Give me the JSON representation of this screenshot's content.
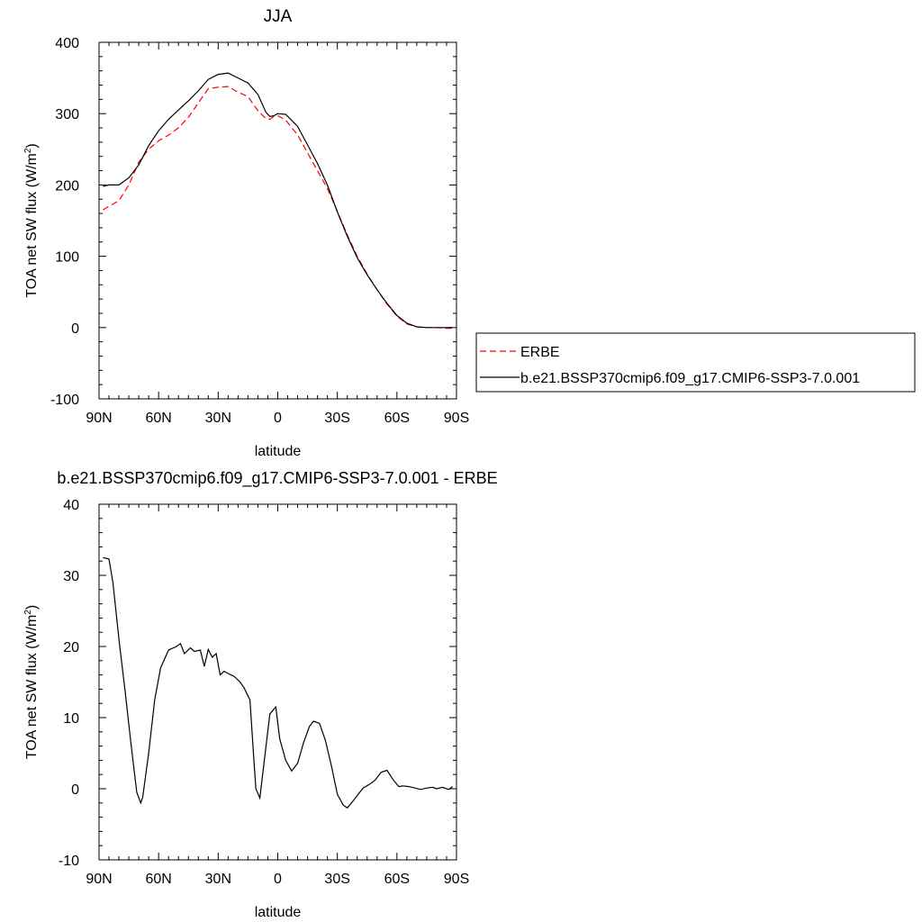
{
  "chart_data": [
    {
      "type": "line",
      "title": "JJA",
      "xlabel": "latitude",
      "ylabel_main": "TOA net SW flux (W/m",
      "ylabel_sup": "2",
      "ylabel_close": ")",
      "xlim": [
        90,
        -90
      ],
      "ylim": [
        -100,
        400
      ],
      "x_ticks": [
        {
          "value": 90,
          "label": "90N"
        },
        {
          "value": 60,
          "label": "60N"
        },
        {
          "value": 30,
          "label": "30N"
        },
        {
          "value": 0,
          "label": "0"
        },
        {
          "value": -30,
          "label": "30S"
        },
        {
          "value": -60,
          "label": "60S"
        },
        {
          "value": -90,
          "label": "90S"
        }
      ],
      "y_ticks": [
        -100,
        0,
        100,
        200,
        300,
        400
      ],
      "legend": {
        "placement": "right"
      },
      "series": [
        {
          "name": "ERBE",
          "color": "#ff0000",
          "style": "dashed",
          "x": [
            88,
            85,
            80,
            75,
            70,
            65,
            60,
            55,
            50,
            45,
            40,
            35,
            30,
            25,
            20,
            15,
            10,
            6,
            4,
            2,
            0,
            -4,
            -10,
            -15,
            -20,
            -25,
            -30,
            -35,
            -40,
            -45,
            -50,
            -55,
            -60,
            -65,
            -70,
            -75,
            -80,
            -85,
            -88
          ],
          "y": [
            165,
            170,
            178,
            200,
            232,
            250,
            262,
            270,
            280,
            295,
            315,
            335,
            337,
            338,
            330,
            324,
            304,
            293,
            292,
            296,
            297,
            291,
            270,
            245,
            220,
            195,
            163,
            130,
            100,
            75,
            53,
            33,
            16,
            5,
            1,
            0,
            0,
            -1,
            -1
          ]
        },
        {
          "name": "b.e21.BSSP370cmip6.f09_g17.CMIP6-SSP3-7.0.001",
          "color": "#000000",
          "style": "solid",
          "x": [
            88,
            85,
            80,
            75,
            70,
            65,
            60,
            55,
            50,
            45,
            40,
            35,
            30,
            25,
            20,
            15,
            10,
            6,
            4,
            2,
            0,
            -4,
            -10,
            -15,
            -20,
            -25,
            -30,
            -35,
            -40,
            -45,
            -50,
            -55,
            -60,
            -65,
            -70,
            -75,
            -80,
            -85,
            -88
          ],
          "y": [
            198,
            200,
            200,
            210,
            228,
            255,
            276,
            292,
            305,
            318,
            332,
            348,
            355,
            357,
            350,
            343,
            327,
            302,
            296,
            297,
            300,
            299,
            282,
            256,
            230,
            200,
            162,
            128,
            98,
            74,
            53,
            34,
            17,
            6,
            1,
            0,
            0,
            0,
            0
          ]
        }
      ]
    },
    {
      "type": "line",
      "title": "b.e21.BSSP370cmip6.f09_g17.CMIP6-SSP3-7.0.001 - ERBE",
      "xlabel": "latitude",
      "ylabel_main": "TOA net SW flux (W/m",
      "ylabel_sup": "2",
      "ylabel_close": ")",
      "xlim": [
        90,
        -90
      ],
      "ylim": [
        -10,
        40
      ],
      "x_ticks": [
        {
          "value": 90,
          "label": "90N"
        },
        {
          "value": 60,
          "label": "60N"
        },
        {
          "value": 30,
          "label": "30N"
        },
        {
          "value": 0,
          "label": "0"
        },
        {
          "value": -30,
          "label": "30S"
        },
        {
          "value": -60,
          "label": "60S"
        },
        {
          "value": -90,
          "label": "90S"
        }
      ],
      "y_ticks": [
        -10,
        0,
        10,
        20,
        30,
        40
      ],
      "series": [
        {
          "color": "#000000",
          "style": "solid",
          "x": [
            88,
            85,
            83,
            80,
            77,
            74,
            71,
            69,
            68,
            65,
            62,
            59,
            55,
            51,
            49,
            47,
            44,
            42,
            39,
            37,
            35,
            33,
            31,
            29,
            27,
            25,
            22,
            19,
            17,
            14,
            12,
            11,
            9,
            7,
            4,
            1,
            -1,
            -4,
            -7,
            -10,
            -13,
            -16,
            -18,
            -21,
            -24,
            -27,
            -30,
            -33,
            -35,
            -38,
            -41,
            -43,
            -46,
            -49,
            -52,
            -55,
            -58,
            -61,
            -63,
            -66,
            -69,
            -72,
            -75,
            -78,
            -80,
            -83,
            -86,
            -88
          ],
          "y": [
            32.5,
            32.3,
            29,
            21,
            14,
            6.5,
            -0.5,
            -2,
            -1.2,
            5,
            12.5,
            17,
            19.5,
            20,
            20.4,
            19,
            19.8,
            19.3,
            19.5,
            17.2,
            19.6,
            18.5,
            19,
            16,
            16.5,
            16.2,
            15.8,
            15,
            14.2,
            12.5,
            4,
            0,
            -1.3,
            3.5,
            10.5,
            11.5,
            7,
            4,
            2.5,
            3.6,
            6.5,
            8.8,
            9.5,
            9.2,
            6.8,
            3.2,
            -0.8,
            -2.3,
            -2.7,
            -1.7,
            -0.6,
            0.1,
            0.6,
            1.2,
            2.3,
            2.6,
            1.3,
            0.3,
            0.4,
            0.3,
            0.1,
            -0.1,
            0.1,
            0.2,
            0,
            0.2,
            -0.1,
            0.3
          ]
        }
      ]
    }
  ]
}
